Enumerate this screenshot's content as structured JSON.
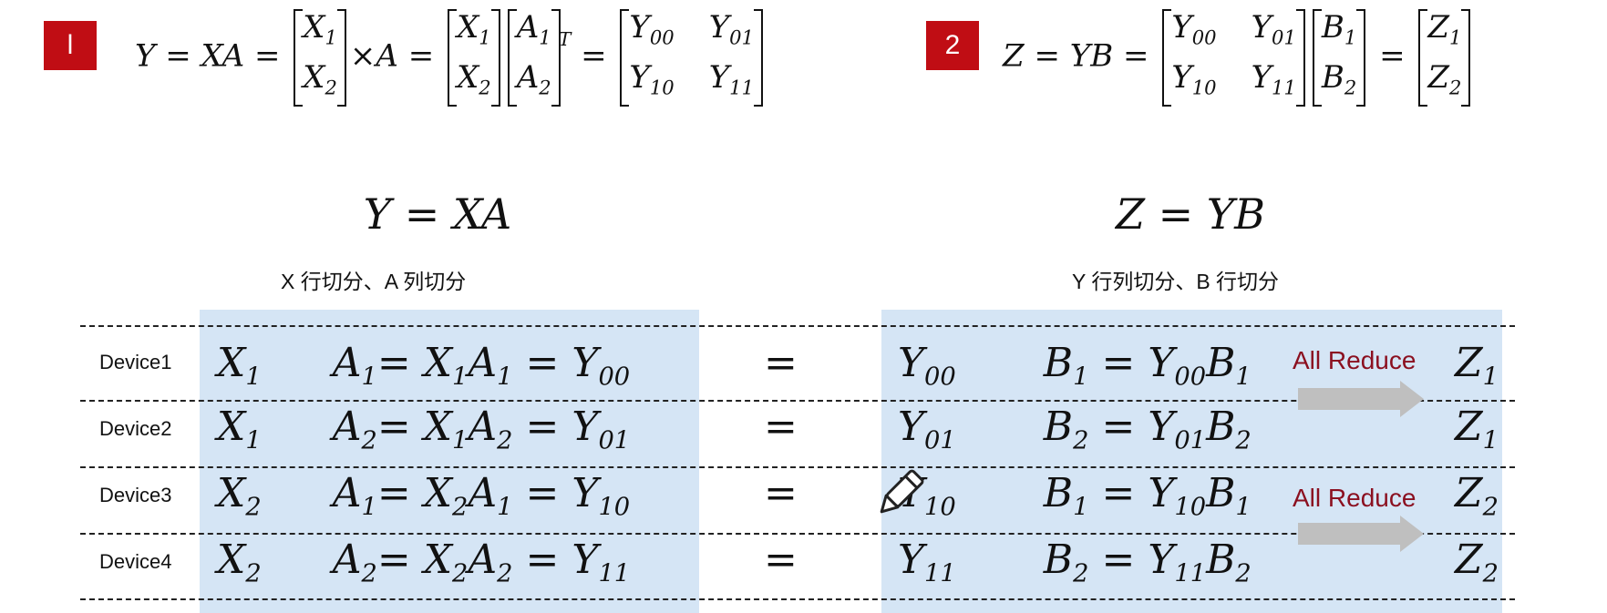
{
  "badges": {
    "one": "l",
    "two": "2"
  },
  "formula1": {
    "lhs": "Y",
    "eq": "=",
    "xa": "XA",
    "m1": [
      "X",
      "1",
      "X",
      "2"
    ],
    "times": "×A",
    "mat_a_sup": "T",
    "y": [
      "Y",
      "00",
      "Y",
      "01",
      "Y",
      "10",
      "Y",
      "11"
    ],
    "a": [
      "A",
      "1",
      "A",
      "2"
    ]
  },
  "formula2": {
    "lhs": "Z",
    "yb": "YB",
    "b": [
      "B",
      "1",
      "B",
      "2"
    ],
    "z": [
      "Z",
      "1",
      "Z",
      "2"
    ]
  },
  "left_header": {
    "title_lhs": "Y",
    "title_eq": "=",
    "title_rhs": "XA",
    "subtitle": "X 行切分、A 列切分"
  },
  "right_header": {
    "title_lhs": "Z",
    "title_eq": "=",
    "title_rhs": "YB",
    "subtitle": "Y 行列切分、B 行切分"
  },
  "devices": [
    {
      "name": "Device1",
      "x": "1",
      "a": "1",
      "y": "00",
      "b": "1",
      "z": "1"
    },
    {
      "name": "Device2",
      "x": "1",
      "a": "2",
      "y": "01",
      "b": "2",
      "z": "1"
    },
    {
      "name": "Device3",
      "x": "2",
      "a": "1",
      "y": "10",
      "b": "1",
      "z": "2"
    },
    {
      "name": "Device4",
      "x": "2",
      "a": "2",
      "y": "11",
      "b": "2",
      "z": "2"
    }
  ],
  "all_reduce_label": "All Reduce",
  "symbols": {
    "X": "X",
    "A": "A",
    "Y": "Y",
    "B": "B",
    "Z": "Z",
    "eq": "="
  },
  "colors": {
    "badge": "#c00d14",
    "highlight": "#d5e5f5",
    "all_reduce_text": "#8b1020",
    "arrow": "#bfbfbf"
  },
  "icons": {
    "edit": "pencil-icon"
  }
}
